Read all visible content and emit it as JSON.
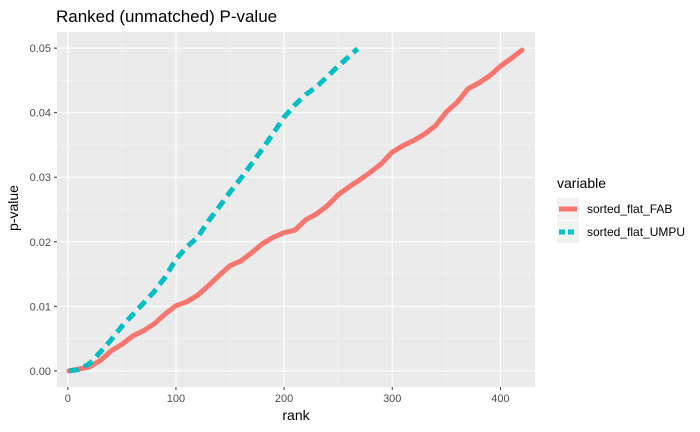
{
  "chart_data": {
    "type": "line",
    "title": "Ranked (unmatched) P-value",
    "xlabel": "rank",
    "ylabel": "p-value",
    "xlim": [
      -10,
      432
    ],
    "ylim": [
      -0.0025,
      0.0525
    ],
    "xticks": [
      0,
      100,
      200,
      300,
      400
    ],
    "yticks": [
      0.0,
      0.01,
      0.02,
      0.03,
      0.04,
      0.05
    ],
    "ytick_labels": [
      "0.00",
      "0.01",
      "0.02",
      "0.03",
      "0.04",
      "0.05"
    ],
    "grid": true,
    "legend_title": "variable",
    "legend_position": "right",
    "series": [
      {
        "name": "sorted_flat_FAB",
        "color": "#F8766D",
        "dash": "solid",
        "x": [
          1,
          20,
          30,
          40,
          50,
          60,
          70,
          80,
          90,
          100,
          110,
          120,
          130,
          140,
          150,
          160,
          170,
          180,
          190,
          200,
          210,
          220,
          230,
          240,
          250,
          260,
          270,
          280,
          290,
          300,
          310,
          320,
          330,
          340,
          350,
          360,
          370,
          380,
          390,
          400,
          410,
          420
        ],
        "y": [
          0.0,
          0.0006,
          0.0016,
          0.0031,
          0.0041,
          0.0054,
          0.0062,
          0.0073,
          0.0088,
          0.0101,
          0.0107,
          0.0117,
          0.0132,
          0.0148,
          0.0163,
          0.017,
          0.0183,
          0.0197,
          0.0207,
          0.0214,
          0.0218,
          0.0234,
          0.0243,
          0.0256,
          0.0273,
          0.0285,
          0.0296,
          0.0308,
          0.0321,
          0.0339,
          0.0349,
          0.0357,
          0.0367,
          0.038,
          0.0401,
          0.0416,
          0.0437,
          0.0446,
          0.0457,
          0.0472,
          0.0484,
          0.0497
        ]
      },
      {
        "name": "sorted_flat_UMPU",
        "color": "#00BFC4",
        "dash": "dashed",
        "x": [
          1,
          10,
          20,
          30,
          40,
          50,
          60,
          70,
          80,
          90,
          100,
          110,
          120,
          130,
          140,
          150,
          160,
          170,
          180,
          190,
          200,
          210,
          220,
          230,
          240,
          250,
          260,
          268
        ],
        "y": [
          0.0,
          0.0002,
          0.0011,
          0.0029,
          0.0048,
          0.0069,
          0.0087,
          0.0105,
          0.0123,
          0.0145,
          0.0173,
          0.0192,
          0.0207,
          0.0232,
          0.0254,
          0.0277,
          0.0298,
          0.0321,
          0.0344,
          0.0368,
          0.0393,
          0.0412,
          0.0428,
          0.044,
          0.0456,
          0.0472,
          0.0487,
          0.0499
        ]
      }
    ]
  }
}
